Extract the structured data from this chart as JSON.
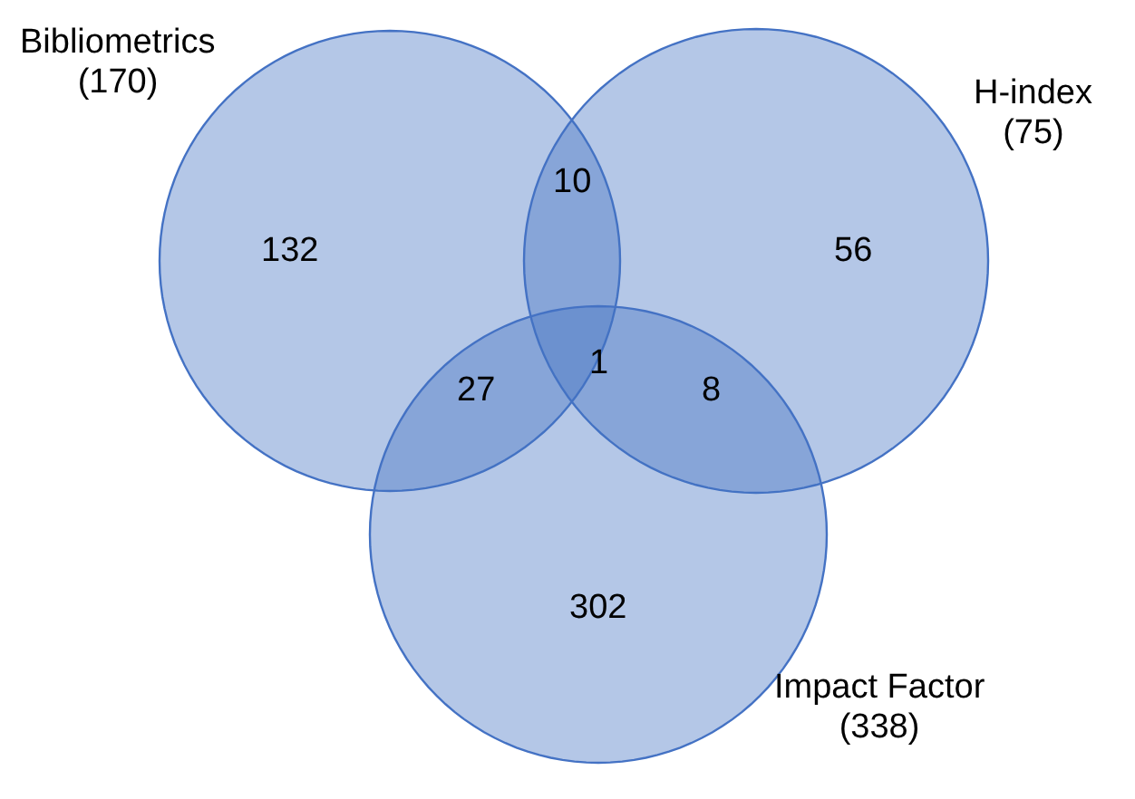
{
  "chart_data": {
    "type": "other",
    "color": "#4472c4",
    "categories": [
      "Bibliometrics",
      "H-index",
      "Impact Factor"
    ],
    "values": [
      170,
      75,
      338
    ],
    "value_labels": [
      "(170)",
      "(75)",
      "(338)"
    ],
    "annotations": [
      "132",
      "56",
      "302",
      "10",
      "27",
      "8",
      "1"
    ]
  }
}
